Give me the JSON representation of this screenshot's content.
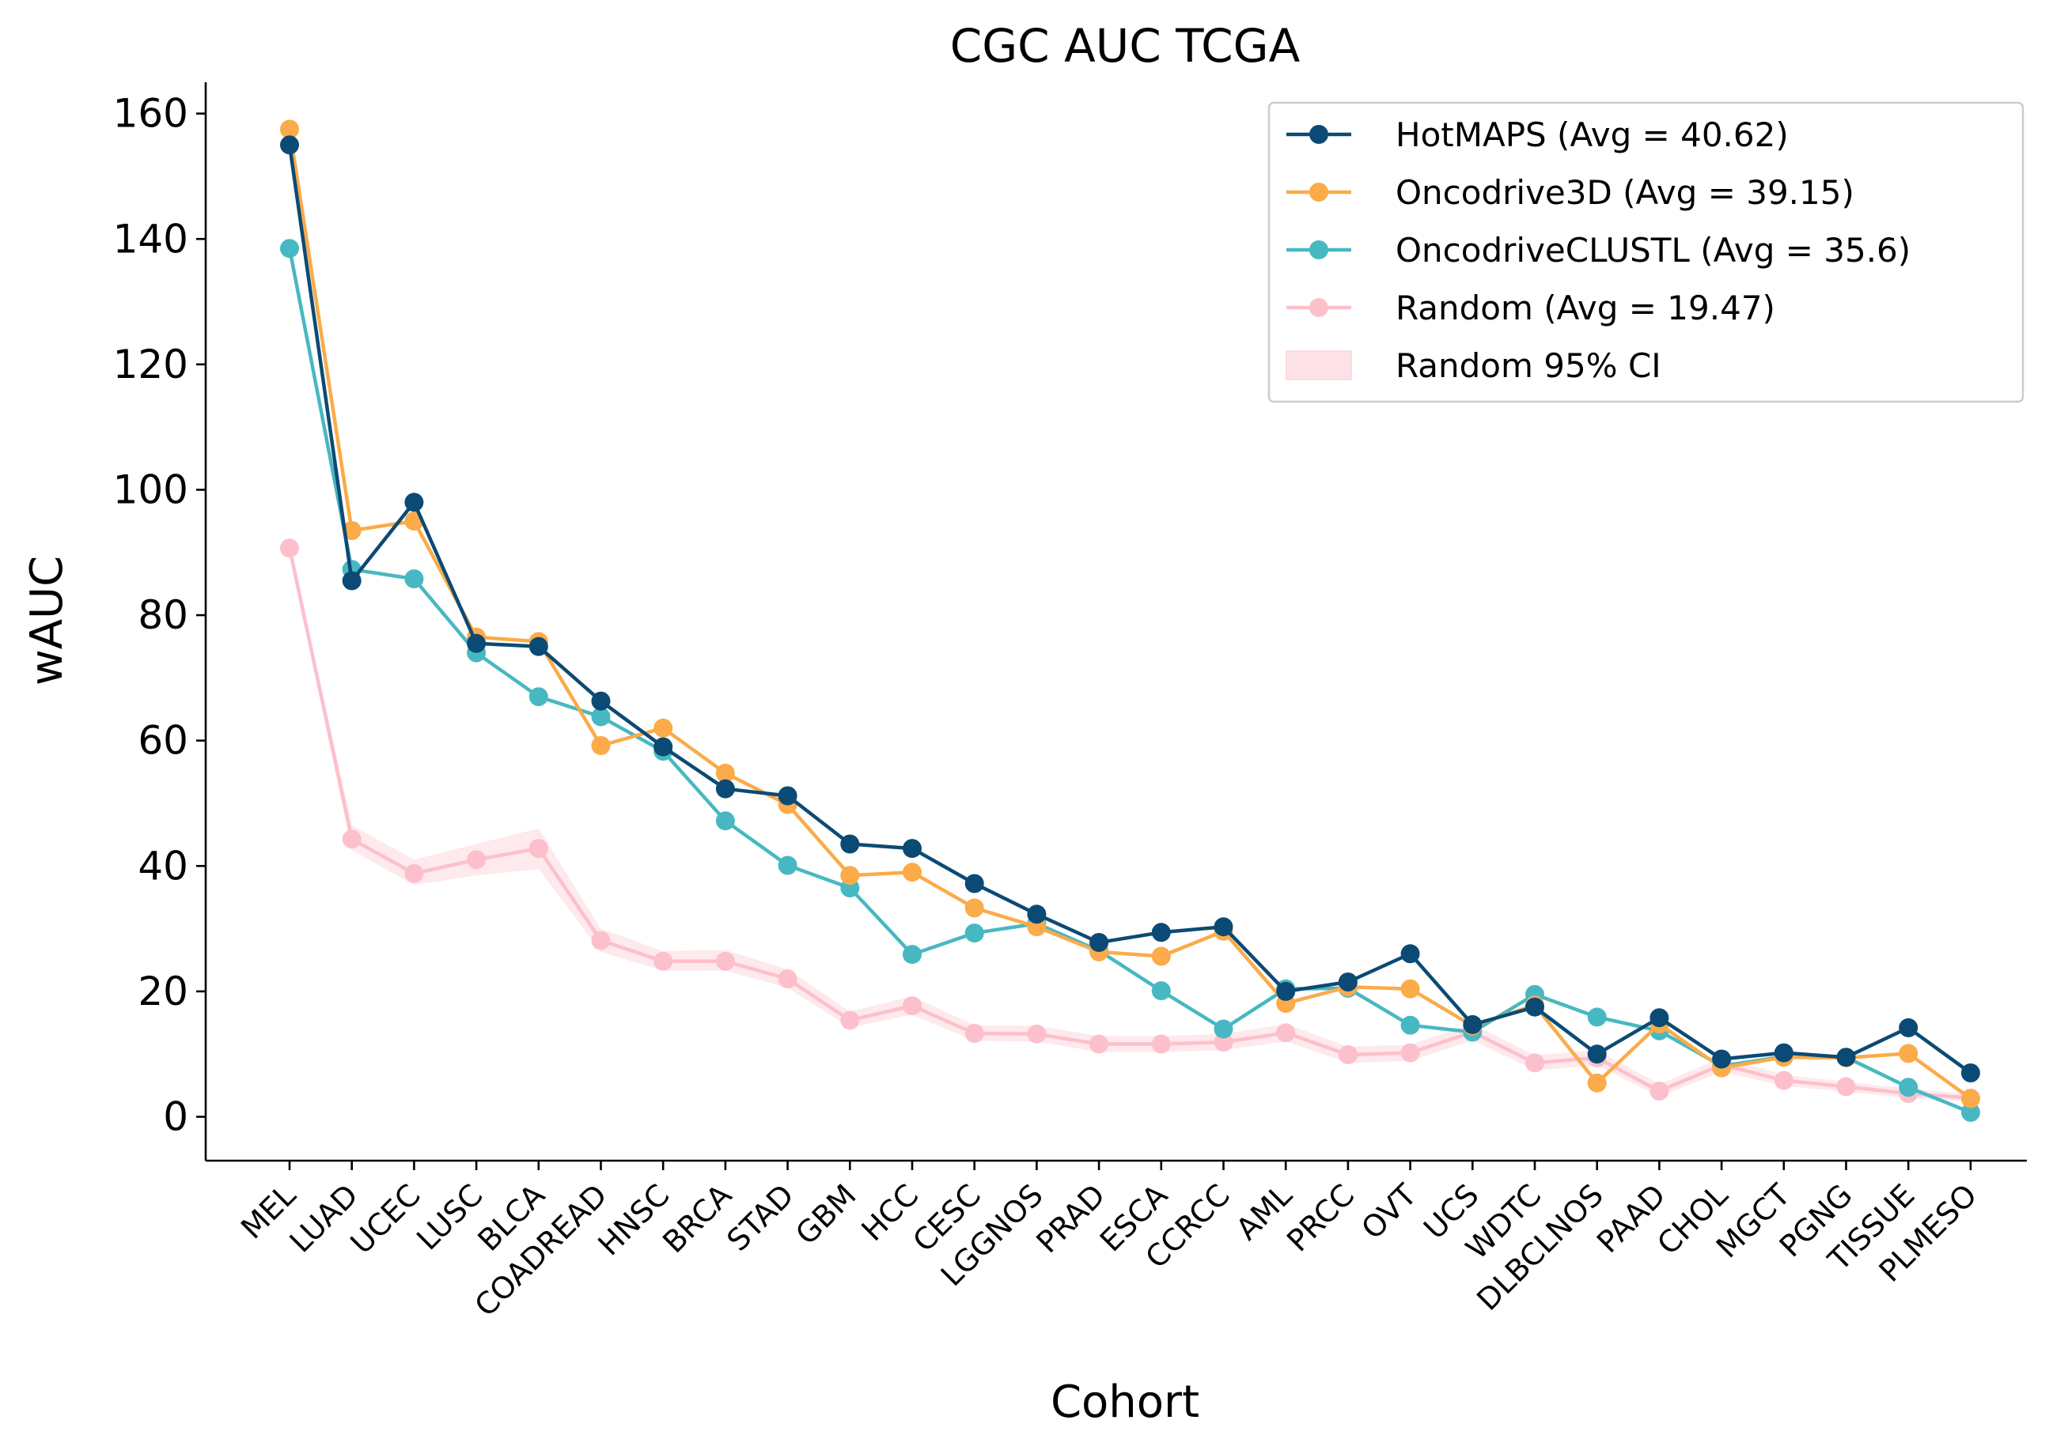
{
  "chart_data": {
    "type": "line",
    "title": "CGC AUC TCGA",
    "xlabel": "Cohort",
    "ylabel": "wAUC",
    "ylim": [
      -7,
      165
    ],
    "yticks": [
      0,
      20,
      40,
      60,
      80,
      100,
      120,
      140,
      160
    ],
    "grid": false,
    "legend_position": "top-right",
    "categories": [
      "MEL",
      "LUAD",
      "UCEC",
      "LUSC",
      "BLCA",
      "COADREAD",
      "HNSC",
      "BRCA",
      "STAD",
      "GBM",
      "HCC",
      "CESC",
      "LGGNOS",
      "PRAD",
      "ESCA",
      "CCRCC",
      "AML",
      "PRCC",
      "OVT",
      "UCS",
      "WDTC",
      "DLBCLNOS",
      "PAAD",
      "CHOL",
      "MGCT",
      "PGNG",
      "TISSUE",
      "PLMESO"
    ],
    "series": [
      {
        "name": "HotMAPS (Avg = 40.62)",
        "color": "#0b4a74",
        "values": [
          155.0,
          85.5,
          98.0,
          75.5,
          75.0,
          66.3,
          59.0,
          52.3,
          51.2,
          43.5,
          42.8,
          37.2,
          32.3,
          27.8,
          29.4,
          30.3,
          20.0,
          21.5,
          26.0,
          14.7,
          17.5,
          10.0,
          15.8,
          9.2,
          10.2,
          9.5,
          14.2,
          7.0
        ]
      },
      {
        "name": "Oncodrive3D (Avg = 39.15)",
        "color": "#fbab49",
        "values": [
          157.5,
          93.5,
          95.0,
          76.5,
          75.8,
          59.2,
          62.0,
          54.8,
          49.8,
          38.5,
          39.0,
          33.3,
          30.3,
          26.3,
          25.6,
          29.6,
          18.1,
          20.7,
          20.4,
          14.5,
          17.8,
          5.4,
          14.8,
          7.8,
          9.5,
          9.4,
          10.1,
          2.9
        ]
      },
      {
        "name": "OncodriveCLUSTL (Avg = 35.6)",
        "color": "#47b8c1",
        "values": [
          138.5,
          87.3,
          85.8,
          74.0,
          67.0,
          63.8,
          58.3,
          47.2,
          40.1,
          36.5,
          25.9,
          29.3,
          30.8,
          26.5,
          20.1,
          14.0,
          20.4,
          20.5,
          14.6,
          13.5,
          19.5,
          15.9,
          13.7,
          8.1,
          9.6,
          9.5,
          4.7,
          0.7
        ]
      },
      {
        "name": "Random (Avg = 19.47)",
        "color": "#fcc0cc",
        "values": [
          90.7,
          44.3,
          38.8,
          41.0,
          42.8,
          28.1,
          24.8,
          24.8,
          22.0,
          15.4,
          17.7,
          13.3,
          13.2,
          11.6,
          11.6,
          11.9,
          13.4,
          9.9,
          10.2,
          13.5,
          8.6,
          9.4,
          4.1,
          8.3,
          5.8,
          4.8,
          3.7,
          3.0
        ]
      }
    ],
    "ci_band": {
      "name": "Random 95% CI",
      "color": "#fde2e7",
      "lower": [
        90.0,
        42.5,
        37.0,
        38.5,
        39.5,
        26.3,
        23.3,
        23.3,
        20.6,
        14.2,
        16.3,
        12.1,
        12.0,
        10.3,
        10.3,
        10.6,
        12.0,
        8.6,
        8.9,
        12.2,
        7.4,
        8.2,
        3.2,
        7.2,
        4.9,
        4.0,
        3.0,
        2.4
      ],
      "upper": [
        91.4,
        46.5,
        41.0,
        43.5,
        46.0,
        30.0,
        26.4,
        26.6,
        23.5,
        16.8,
        19.2,
        14.6,
        14.5,
        12.9,
        12.9,
        13.2,
        14.8,
        11.2,
        11.5,
        14.8,
        9.8,
        10.6,
        5.2,
        9.4,
        6.7,
        5.6,
        4.5,
        3.6
      ]
    }
  }
}
